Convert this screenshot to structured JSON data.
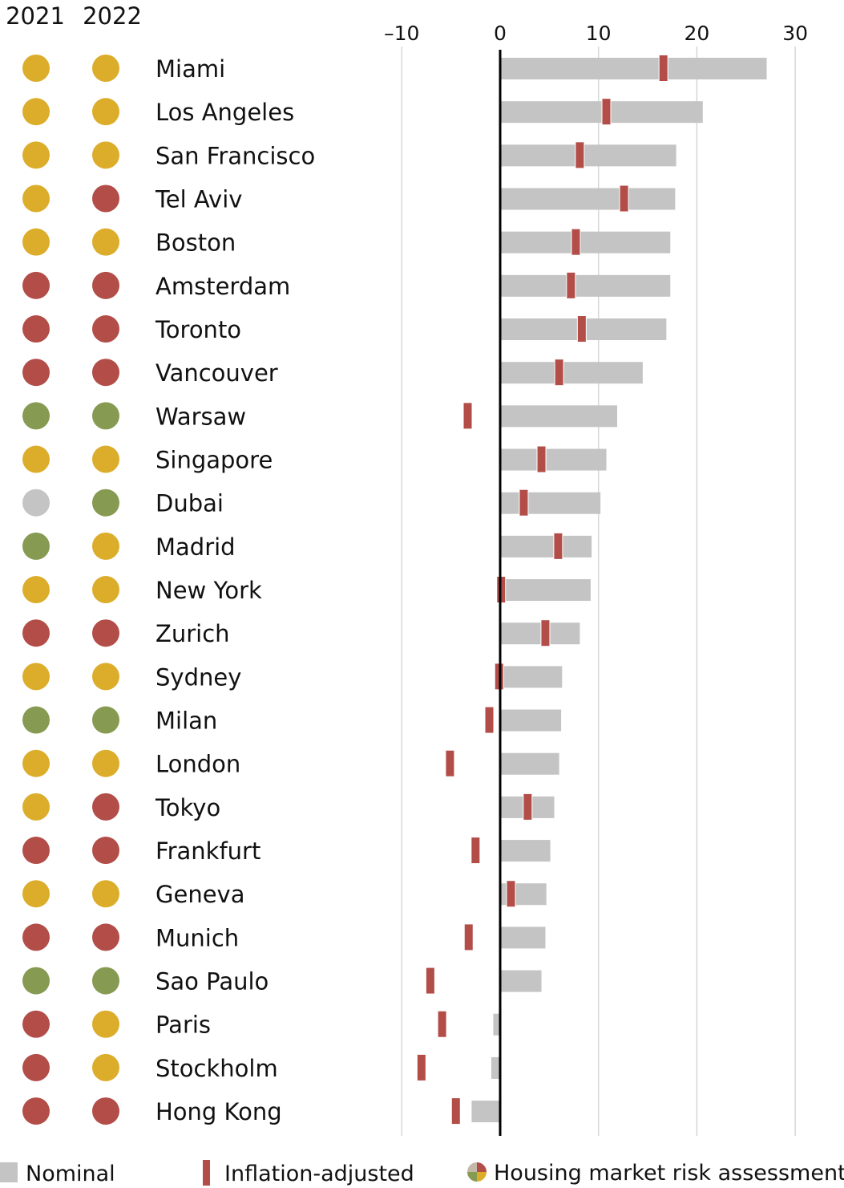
{
  "chart_data": {
    "type": "bar",
    "orientation": "horizontal",
    "title": "",
    "xlabel": "",
    "ylabel": "",
    "xlim": [
      -10,
      30
    ],
    "x_ticks": [
      "–10",
      "0",
      "10",
      "20",
      "30"
    ],
    "x_tick_values": [
      -10,
      0,
      10,
      20,
      30
    ],
    "grid": true,
    "legend_placement": "bottom",
    "column_headers": [
      "2021",
      "2022"
    ],
    "categories": [
      "Miami",
      "Los Angeles",
      "San Francisco",
      "Tel Aviv",
      "Boston",
      "Amsterdam",
      "Toronto",
      "Vancouver",
      "Warsaw",
      "Singapore",
      "Dubai",
      "Madrid",
      "New York",
      "Zurich",
      "Sydney",
      "Milan",
      "London",
      "Tokyo",
      "Frankfurt",
      "Geneva",
      "Munich",
      "Sao Paulo",
      "Paris",
      "Stockholm",
      "Hong Kong"
    ],
    "series": [
      {
        "name": "Nominal",
        "color": "#c4c4c4",
        "values": [
          27.1,
          20.6,
          17.9,
          17.8,
          17.3,
          17.3,
          16.9,
          14.5,
          11.9,
          10.8,
          10.2,
          9.3,
          9.2,
          8.1,
          6.3,
          6.2,
          6.0,
          5.5,
          5.1,
          4.7,
          4.6,
          4.2,
          -0.7,
          -0.9,
          -2.9
        ]
      },
      {
        "name": "Inflation-adjusted",
        "color": "#b24d48",
        "values": [
          16.6,
          10.8,
          8.1,
          12.6,
          7.7,
          7.2,
          8.3,
          6.0,
          -3.3,
          4.2,
          2.4,
          5.9,
          0.1,
          4.6,
          -0.1,
          -1.1,
          -5.1,
          2.8,
          -2.5,
          1.1,
          -3.2,
          -7.1,
          -5.9,
          -8.0,
          -4.5
        ]
      }
    ],
    "risk_assessment": {
      "2021": [
        "yellow",
        "yellow",
        "yellow",
        "yellow",
        "yellow",
        "red",
        "red",
        "red",
        "green",
        "yellow",
        "grey",
        "green",
        "yellow",
        "red",
        "yellow",
        "green",
        "yellow",
        "yellow",
        "red",
        "yellow",
        "red",
        "green",
        "red",
        "red",
        "red"
      ],
      "2022": [
        "yellow",
        "yellow",
        "yellow",
        "red",
        "yellow",
        "red",
        "red",
        "red",
        "green",
        "yellow",
        "green",
        "yellow",
        "yellow",
        "red",
        "yellow",
        "green",
        "yellow",
        "red",
        "red",
        "yellow",
        "red",
        "green",
        "yellow",
        "yellow",
        "red"
      ]
    },
    "risk_colors": {
      "yellow": "#dcad2a",
      "red": "#b24d48",
      "green": "#869a52",
      "grey": "#c4c4c4"
    },
    "legend": [
      "Nominal",
      "Inflation-adjusted",
      "Housing market risk assessment"
    ]
  }
}
